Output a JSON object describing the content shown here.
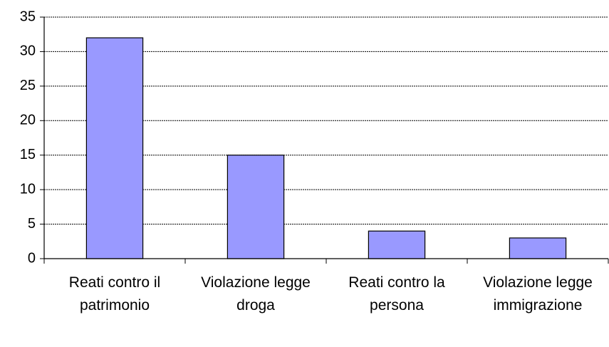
{
  "chart_data": {
    "type": "bar",
    "categories": [
      "Reati contro il patrimonio",
      "Violazione legge droga",
      "Reati contro la persona",
      "Violazione legge immigrazione"
    ],
    "values": [
      32,
      15,
      4,
      3
    ],
    "color": "#9999ff",
    "ylim": [
      0,
      35
    ],
    "yticks": [
      0,
      5,
      10,
      15,
      20,
      25,
      30,
      35
    ],
    "grid": true
  }
}
